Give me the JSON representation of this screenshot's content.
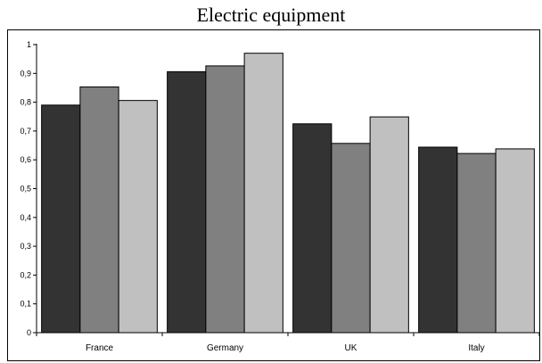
{
  "chart_data": {
    "type": "bar",
    "title": "Electric equipment",
    "categories": [
      "France",
      "Germany",
      "UK",
      "Italy"
    ],
    "series": [
      {
        "values": [
          0.79,
          0.906,
          0.725,
          0.644
        ],
        "color": "#333333"
      },
      {
        "values": [
          0.853,
          0.926,
          0.657,
          0.622
        ],
        "color": "#808080"
      },
      {
        "values": [
          0.806,
          0.97,
          0.749,
          0.638
        ],
        "color": "#c0c0c0"
      }
    ],
    "ylim": [
      0,
      1
    ],
    "yticks": [
      "0",
      "0,1",
      "0,2",
      "0,3",
      "0,4",
      "0,5",
      "0,6",
      "0,7",
      "0,8",
      "0,9",
      "1"
    ],
    "grid": false,
    "legend": "none"
  }
}
